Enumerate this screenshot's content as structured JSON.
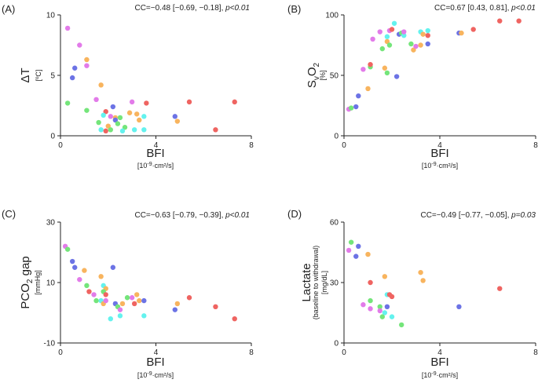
{
  "colors": {
    "red": "#ef6461",
    "orange": "#f8b45e",
    "green": "#74e57a",
    "cyan": "#64f2ee",
    "blue": "#6c73e5",
    "magenta": "#e27be9"
  },
  "x_axis": {
    "label": "BFI",
    "unit_prefix": "[10",
    "unit_exp": "-9",
    "unit_suffix": "·cm²/s]"
  },
  "chart_data": [
    {
      "id": "A",
      "type": "scatter",
      "panel_label": "(A)",
      "cc_text": "CC=−0.48 [−0.69, −0.18], ",
      "p_text": "p<0.01",
      "ylabel_main": "ΔT",
      "ylabel_unit": "[ºC]",
      "xlim": [
        0,
        8
      ],
      "ylim": [
        0,
        10
      ],
      "xticks": [
        "0",
        "4",
        "8"
      ],
      "yticks": [
        "0",
        "5",
        "10"
      ],
      "points": [
        {
          "x": 0.3,
          "y": 8.9,
          "c": "magenta"
        },
        {
          "x": 0.8,
          "y": 7.5,
          "c": "magenta"
        },
        {
          "x": 1.1,
          "y": 6.3,
          "c": "orange"
        },
        {
          "x": 1.1,
          "y": 5.8,
          "c": "magenta"
        },
        {
          "x": 0.6,
          "y": 5.6,
          "c": "blue"
        },
        {
          "x": 0.5,
          "y": 4.8,
          "c": "blue"
        },
        {
          "x": 1.7,
          "y": 4.2,
          "c": "orange"
        },
        {
          "x": 1.5,
          "y": 3.0,
          "c": "magenta"
        },
        {
          "x": 0.3,
          "y": 2.7,
          "c": "green"
        },
        {
          "x": 3.0,
          "y": 2.8,
          "c": "magenta"
        },
        {
          "x": 3.6,
          "y": 2.7,
          "c": "red"
        },
        {
          "x": 5.4,
          "y": 2.8,
          "c": "red"
        },
        {
          "x": 7.3,
          "y": 2.8,
          "c": "red"
        },
        {
          "x": 2.2,
          "y": 2.4,
          "c": "blue"
        },
        {
          "x": 1.1,
          "y": 2.1,
          "c": "green"
        },
        {
          "x": 1.9,
          "y": 2.0,
          "c": "red"
        },
        {
          "x": 2.9,
          "y": 1.9,
          "c": "orange"
        },
        {
          "x": 3.2,
          "y": 1.8,
          "c": "orange"
        },
        {
          "x": 1.8,
          "y": 1.7,
          "c": "cyan"
        },
        {
          "x": 2.1,
          "y": 1.6,
          "c": "magenta"
        },
        {
          "x": 2.3,
          "y": 1.5,
          "c": "orange"
        },
        {
          "x": 2.5,
          "y": 1.5,
          "c": "green"
        },
        {
          "x": 2.3,
          "y": 1.3,
          "c": "blue"
        },
        {
          "x": 3.5,
          "y": 1.6,
          "c": "cyan"
        },
        {
          "x": 4.8,
          "y": 1.6,
          "c": "blue"
        },
        {
          "x": 3.3,
          "y": 1.3,
          "c": "orange"
        },
        {
          "x": 4.9,
          "y": 1.2,
          "c": "orange"
        },
        {
          "x": 1.6,
          "y": 1.1,
          "c": "green"
        },
        {
          "x": 2.4,
          "y": 1.0,
          "c": "green"
        },
        {
          "x": 2.0,
          "y": 0.8,
          "c": "orange"
        },
        {
          "x": 2.7,
          "y": 0.7,
          "c": "green"
        },
        {
          "x": 1.7,
          "y": 0.5,
          "c": "cyan"
        },
        {
          "x": 1.9,
          "y": 0.4,
          "c": "red"
        },
        {
          "x": 2.6,
          "y": 0.4,
          "c": "cyan"
        },
        {
          "x": 3.1,
          "y": 0.5,
          "c": "cyan"
        },
        {
          "x": 3.5,
          "y": 0.5,
          "c": "cyan"
        },
        {
          "x": 2.1,
          "y": 0.5,
          "c": "green"
        },
        {
          "x": 6.5,
          "y": 0.5,
          "c": "red"
        }
      ]
    },
    {
      "id": "B",
      "type": "scatter",
      "panel_label": "(B)",
      "cc_text": "CC=0.67 [0.43, 0.81], ",
      "p_text": "p<0.01",
      "ylabel_main": "SvO2",
      "ylabel_unit": "[%]",
      "xlim": [
        0,
        8
      ],
      "ylim": [
        0,
        100
      ],
      "xticks": [
        "0",
        "4",
        "8"
      ],
      "yticks": [
        "0",
        "50",
        "100"
      ],
      "points": [
        {
          "x": 0.2,
          "y": 22,
          "c": "magenta"
        },
        {
          "x": 0.3,
          "y": 23,
          "c": "green"
        },
        {
          "x": 0.5,
          "y": 24,
          "c": "blue"
        },
        {
          "x": 0.6,
          "y": 33,
          "c": "blue"
        },
        {
          "x": 1.0,
          "y": 39,
          "c": "orange"
        },
        {
          "x": 0.8,
          "y": 55,
          "c": "magenta"
        },
        {
          "x": 1.1,
          "y": 57,
          "c": "green"
        },
        {
          "x": 1.1,
          "y": 59,
          "c": "red"
        },
        {
          "x": 1.7,
          "y": 56,
          "c": "orange"
        },
        {
          "x": 1.8,
          "y": 52,
          "c": "green"
        },
        {
          "x": 1.6,
          "y": 72,
          "c": "green"
        },
        {
          "x": 1.2,
          "y": 80,
          "c": "magenta"
        },
        {
          "x": 1.5,
          "y": 86,
          "c": "magenta"
        },
        {
          "x": 1.8,
          "y": 78,
          "c": "orange"
        },
        {
          "x": 1.8,
          "y": 82,
          "c": "cyan"
        },
        {
          "x": 1.9,
          "y": 87,
          "c": "magenta"
        },
        {
          "x": 2.0,
          "y": 88,
          "c": "red"
        },
        {
          "x": 2.1,
          "y": 93,
          "c": "cyan"
        },
        {
          "x": 1.9,
          "y": 75,
          "c": "green"
        },
        {
          "x": 2.2,
          "y": 49,
          "c": "blue"
        },
        {
          "x": 2.3,
          "y": 84,
          "c": "blue"
        },
        {
          "x": 2.4,
          "y": 85,
          "c": "green"
        },
        {
          "x": 2.5,
          "y": 83,
          "c": "cyan"
        },
        {
          "x": 2.5,
          "y": 86,
          "c": "magenta"
        },
        {
          "x": 2.9,
          "y": 71,
          "c": "orange"
        },
        {
          "x": 2.8,
          "y": 76,
          "c": "green"
        },
        {
          "x": 3.0,
          "y": 74,
          "c": "magenta"
        },
        {
          "x": 3.2,
          "y": 75,
          "c": "orange"
        },
        {
          "x": 3.2,
          "y": 86,
          "c": "cyan"
        },
        {
          "x": 3.3,
          "y": 84,
          "c": "orange"
        },
        {
          "x": 3.5,
          "y": 83,
          "c": "red"
        },
        {
          "x": 3.5,
          "y": 87,
          "c": "cyan"
        },
        {
          "x": 3.5,
          "y": 76,
          "c": "blue"
        },
        {
          "x": 4.8,
          "y": 85,
          "c": "blue"
        },
        {
          "x": 4.9,
          "y": 85,
          "c": "orange"
        },
        {
          "x": 5.4,
          "y": 88,
          "c": "red"
        },
        {
          "x": 6.5,
          "y": 95,
          "c": "red"
        },
        {
          "x": 7.3,
          "y": 95,
          "c": "red"
        }
      ]
    },
    {
      "id": "C",
      "type": "scatter",
      "panel_label": "(C)",
      "cc_text": "CC=−0.63 [−0.79, −0.39], ",
      "p_text": "p<0.01",
      "ylabel_main": "PCO2 gap",
      "ylabel_unit": "[mmHg]",
      "xlim": [
        0,
        8
      ],
      "ylim": [
        -10,
        30
      ],
      "xticks": [
        "0",
        "4",
        "8"
      ],
      "yticks": [
        "-10",
        "10",
        "30"
      ],
      "points": [
        {
          "x": 0.2,
          "y": 22,
          "c": "magenta"
        },
        {
          "x": 0.3,
          "y": 21,
          "c": "green"
        },
        {
          "x": 0.5,
          "y": 17,
          "c": "blue"
        },
        {
          "x": 0.6,
          "y": 15,
          "c": "blue"
        },
        {
          "x": 1.0,
          "y": 14,
          "c": "orange"
        },
        {
          "x": 0.8,
          "y": 11,
          "c": "magenta"
        },
        {
          "x": 1.1,
          "y": 9,
          "c": "green"
        },
        {
          "x": 1.2,
          "y": 7,
          "c": "red"
        },
        {
          "x": 1.4,
          "y": 6,
          "c": "magenta"
        },
        {
          "x": 1.7,
          "y": 12,
          "c": "orange"
        },
        {
          "x": 2.2,
          "y": 15,
          "c": "blue"
        },
        {
          "x": 1.8,
          "y": 9,
          "c": "cyan"
        },
        {
          "x": 1.9,
          "y": 8,
          "c": "orange"
        },
        {
          "x": 1.8,
          "y": 7,
          "c": "green"
        },
        {
          "x": 1.9,
          "y": 6,
          "c": "red"
        },
        {
          "x": 1.5,
          "y": 4,
          "c": "green"
        },
        {
          "x": 1.7,
          "y": 4,
          "c": "cyan"
        },
        {
          "x": 1.8,
          "y": 3,
          "c": "orange"
        },
        {
          "x": 1.9,
          "y": 4,
          "c": "magenta"
        },
        {
          "x": 2.3,
          "y": 3,
          "c": "blue"
        },
        {
          "x": 2.4,
          "y": 2,
          "c": "green"
        },
        {
          "x": 2.5,
          "y": 1,
          "c": "magenta"
        },
        {
          "x": 2.6,
          "y": 3,
          "c": "orange"
        },
        {
          "x": 2.8,
          "y": 5,
          "c": "green"
        },
        {
          "x": 3.0,
          "y": 5,
          "c": "magenta"
        },
        {
          "x": 3.2,
          "y": 6,
          "c": "orange"
        },
        {
          "x": 3.1,
          "y": 3,
          "c": "red"
        },
        {
          "x": 3.3,
          "y": 4,
          "c": "orange"
        },
        {
          "x": 2.1,
          "y": -2,
          "c": "cyan"
        },
        {
          "x": 2.5,
          "y": -1,
          "c": "cyan"
        },
        {
          "x": 3.5,
          "y": 4,
          "c": "blue"
        },
        {
          "x": 3.5,
          "y": -1,
          "c": "cyan"
        },
        {
          "x": 4.8,
          "y": 1,
          "c": "blue"
        },
        {
          "x": 4.9,
          "y": 3,
          "c": "orange"
        },
        {
          "x": 5.4,
          "y": 5,
          "c": "red"
        },
        {
          "x": 6.5,
          "y": 2,
          "c": "red"
        },
        {
          "x": 7.3,
          "y": -2,
          "c": "red"
        }
      ]
    },
    {
      "id": "D",
      "type": "scatter",
      "panel_label": "(D)",
      "cc_text": "CC=−0.49 [−0.77, −0.05], ",
      "p_text": "p=0.03",
      "ylabel_main": "Lactate",
      "ylabel_sub": "(baseline to withdrawal)",
      "ylabel_unit": "[mg/dL]",
      "xlim": [
        0,
        8
      ],
      "ylim": [
        0,
        60
      ],
      "xticks": [
        "0",
        "4",
        "8"
      ],
      "yticks": [
        "0",
        "30",
        "60"
      ],
      "points": [
        {
          "x": 0.3,
          "y": 50,
          "c": "green"
        },
        {
          "x": 0.6,
          "y": 48,
          "c": "blue"
        },
        {
          "x": 0.2,
          "y": 46,
          "c": "magenta"
        },
        {
          "x": 0.5,
          "y": 43,
          "c": "blue"
        },
        {
          "x": 1.0,
          "y": 44,
          "c": "orange"
        },
        {
          "x": 1.7,
          "y": 33,
          "c": "orange"
        },
        {
          "x": 1.1,
          "y": 30,
          "c": "red"
        },
        {
          "x": 3.2,
          "y": 35,
          "c": "orange"
        },
        {
          "x": 3.3,
          "y": 31,
          "c": "orange"
        },
        {
          "x": 6.5,
          "y": 27,
          "c": "red"
        },
        {
          "x": 1.8,
          "y": 24,
          "c": "cyan"
        },
        {
          "x": 1.9,
          "y": 24,
          "c": "red"
        },
        {
          "x": 2.0,
          "y": 23,
          "c": "red"
        },
        {
          "x": 1.1,
          "y": 21,
          "c": "green"
        },
        {
          "x": 0.8,
          "y": 19,
          "c": "magenta"
        },
        {
          "x": 1.5,
          "y": 18,
          "c": "green"
        },
        {
          "x": 1.8,
          "y": 18,
          "c": "blue"
        },
        {
          "x": 1.1,
          "y": 17,
          "c": "magenta"
        },
        {
          "x": 1.5,
          "y": 16,
          "c": "magenta"
        },
        {
          "x": 4.8,
          "y": 18,
          "c": "blue"
        },
        {
          "x": 1.7,
          "y": 15,
          "c": "cyan"
        },
        {
          "x": 1.6,
          "y": 13,
          "c": "green"
        },
        {
          "x": 2.0,
          "y": 13,
          "c": "cyan"
        },
        {
          "x": 2.4,
          "y": 9,
          "c": "green"
        }
      ]
    }
  ]
}
